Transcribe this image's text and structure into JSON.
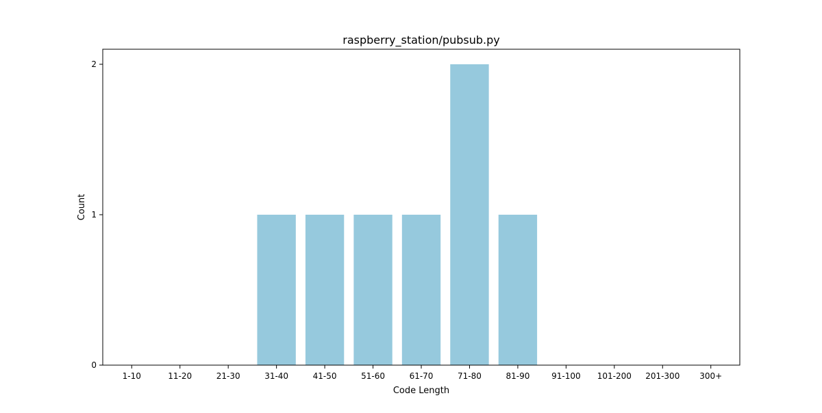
{
  "chart_data": {
    "type": "bar",
    "title": "raspberry_station/pubsub.py",
    "xlabel": "Code Length",
    "ylabel": "Count",
    "categories": [
      "1-10",
      "11-20",
      "21-30",
      "31-40",
      "41-50",
      "51-60",
      "61-70",
      "71-80",
      "81-90",
      "91-100",
      "101-200",
      "201-300",
      "300+"
    ],
    "values": [
      0,
      0,
      0,
      1,
      1,
      1,
      1,
      2,
      1,
      0,
      0,
      0,
      0
    ],
    "ylim": [
      0,
      2.1
    ],
    "yticks": [
      0,
      1,
      2
    ],
    "grid": false,
    "legend": "none",
    "bar_color": "#96c9dd"
  }
}
